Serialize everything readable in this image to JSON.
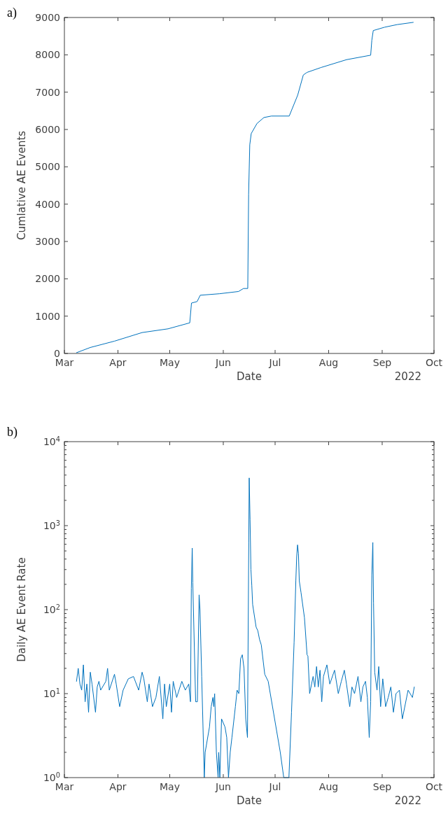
{
  "chart_data": [
    {
      "type": "line",
      "xlabel": "Date",
      "ylabel": "Cumlative AE Events",
      "annotations": [
        "a)",
        "2022"
      ],
      "x": [
        "2022-03-08",
        "2022-03-16",
        "2022-03-30",
        "2022-04-15",
        "2022-04-30",
        "2022-05-12T14:00",
        "2022-05-13T14:00",
        "2022-05-16T20:00",
        "2022-05-18T16:00",
        "2022-05-29T20:00",
        "2022-06-09T20:00",
        "2022-06-12T16:00",
        "2022-06-15T04:00",
        "2022-06-15T16:00",
        "2022-06-16T08:00",
        "2022-06-17T04:00",
        "2022-06-20T12:00",
        "2022-06-24T12:00",
        "2022-06-28T20:00",
        "2022-07-09T04:00",
        "2022-07-14T02:00",
        "2022-07-17T08:00",
        "2022-07-19T12:00",
        "2022-07-27T14:00",
        "2022-08-11T08:00",
        "2022-08-25T08:00",
        "2022-08-26",
        "2022-08-26T20:00",
        "2022-09-02T10:00",
        "2022-09-09T16:00",
        "2022-09-19"
      ],
      "series": [
        {
          "color": "#0072bd",
          "values": [
            20,
            160,
            330,
            560,
            660,
            820,
            1350,
            1390,
            1560,
            1600,
            1660,
            1740,
            1740,
            4270,
            5590,
            5890,
            6160,
            6320,
            6360,
            6360,
            6920,
            7460,
            7530,
            7660,
            7870,
            7990,
            8390,
            8650,
            8740,
            8810,
            8870
          ]
        }
      ],
      "xlim": [
        "2022-03-01",
        "2022-10-01"
      ],
      "xticks": [
        {
          "value": "2022-03-01",
          "label": "Mar"
        },
        {
          "value": "2022-04-01",
          "label": "Apr"
        },
        {
          "value": "2022-05-01",
          "label": "May"
        },
        {
          "value": "2022-06-01",
          "label": "Jun"
        },
        {
          "value": "2022-07-01",
          "label": "Jul"
        },
        {
          "value": "2022-08-01",
          "label": "Aug"
        },
        {
          "value": "2022-09-01",
          "label": "Sep"
        },
        {
          "value": "2022-10-01",
          "label": "Oct"
        }
      ],
      "ylim": [
        0,
        9000
      ],
      "yticks": [
        0,
        1000,
        2000,
        3000,
        4000,
        5000,
        6000,
        7000,
        8000,
        9000
      ]
    },
    {
      "type": "line",
      "xlabel": "Date",
      "ylabel": "Daily AE Event Rate",
      "annotations": [
        "b)",
        "2022"
      ],
      "log": "y",
      "x": [
        "2022-03-08",
        "2022-03-09",
        "2022-03-10",
        "2022-03-11",
        "2022-03-12",
        "2022-03-13",
        "2022-03-14",
        "2022-03-15",
        "2022-03-16",
        "2022-03-17",
        "2022-03-19",
        "2022-03-20",
        "2022-03-21",
        "2022-03-22",
        "2022-03-25",
        "2022-03-26",
        "2022-03-27",
        "2022-03-30",
        "2022-03-31",
        "2022-04-02",
        "2022-04-04",
        "2022-04-07",
        "2022-04-10",
        "2022-04-13",
        "2022-04-15",
        "2022-04-16",
        "2022-04-18",
        "2022-04-19",
        "2022-04-21",
        "2022-04-23",
        "2022-04-25",
        "2022-04-27",
        "2022-04-28",
        "2022-04-29",
        "2022-05-01",
        "2022-05-02",
        "2022-05-03",
        "2022-05-05",
        "2022-05-08",
        "2022-05-10",
        "2022-05-12",
        "2022-05-13",
        "2022-05-13T12:00",
        "2022-05-14",
        "2022-05-14T08:00",
        "2022-05-16",
        "2022-05-17",
        "2022-05-18",
        "2022-05-18T12:00",
        "2022-05-19T12:00",
        "2022-05-21",
        "2022-05-21T12:00",
        "2022-05-24",
        "2022-05-25",
        "2022-05-26",
        "2022-05-26T12:00",
        "2022-05-27",
        "2022-05-28",
        "2022-05-29",
        "2022-05-29T08:00",
        "2022-05-30",
        "2022-05-31",
        "2022-06-02",
        "2022-06-03",
        "2022-06-04",
        "2022-06-05",
        "2022-06-06",
        "2022-06-08",
        "2022-06-09",
        "2022-06-10",
        "2022-06-11",
        "2022-06-12",
        "2022-06-13",
        "2022-06-14",
        "2022-06-15",
        "2022-06-15T18:00",
        "2022-06-16",
        "2022-06-16T12:00",
        "2022-06-17",
        "2022-06-17T12:00",
        "2022-06-18",
        "2022-06-20",
        "2022-06-21",
        "2022-06-22",
        "2022-06-23",
        "2022-06-25",
        "2022-06-27",
        "2022-07-04",
        "2022-07-06",
        "2022-07-09",
        "2022-07-10T12:00",
        "2022-07-12",
        "2022-07-13",
        "2022-07-13T12:00",
        "2022-07-14",
        "2022-07-14T12:00",
        "2022-07-15",
        "2022-07-16",
        "2022-07-18",
        "2022-07-19T12:00",
        "2022-07-20",
        "2022-07-21",
        "2022-07-23",
        "2022-07-24",
        "2022-07-25",
        "2022-07-26",
        "2022-07-27",
        "2022-07-28",
        "2022-07-29",
        "2022-07-31",
        "2022-08-01T16:00",
        "2022-08-04T10:00",
        "2022-08-06T14:00",
        "2022-08-08T08:00",
        "2022-08-10T02:00",
        "2022-08-11T08:00",
        "2022-08-13T05:00",
        "2022-08-14T12:00",
        "2022-08-16",
        "2022-08-18",
        "2022-08-19T16:00",
        "2022-08-20T20:00",
        "2022-08-22T08:00",
        "2022-08-23T10:00",
        "2022-08-24T12:00",
        "2022-08-25T08:00",
        "2022-08-26",
        "2022-08-26T14:00",
        "2022-08-27",
        "2022-08-27T16:00",
        "2022-08-29",
        "2022-08-30",
        "2022-08-31T02:00",
        "2022-09-01T08:00",
        "2022-09-03",
        "2022-09-04T12:00",
        "2022-09-06",
        "2022-09-07T12:00",
        "2022-09-09",
        "2022-09-11",
        "2022-09-12T16:00",
        "2022-09-16",
        "2022-09-18T12:00",
        "2022-09-19T14:00"
      ],
      "series": [
        {
          "color": "#0072bd",
          "values": [
            14,
            20,
            13,
            11,
            22,
            8,
            13,
            6,
            18,
            13,
            6,
            12,
            14,
            11,
            14,
            20,
            11,
            17,
            13,
            7,
            11,
            15,
            16,
            11,
            18,
            15,
            8,
            13,
            7,
            9,
            16,
            5,
            13,
            7,
            13,
            6,
            14,
            9,
            14,
            11,
            13,
            8,
            180,
            540,
            210,
            8,
            8,
            150,
            100,
            16,
            1,
            2,
            4,
            7,
            9,
            7,
            10,
            2,
            1,
            2,
            1,
            5,
            4,
            3,
            1,
            2,
            3,
            7,
            11,
            10,
            26,
            29,
            20,
            5,
            3,
            620,
            3700,
            1170,
            300,
            195,
            115,
            62,
            56,
            44,
            38,
            17,
            14,
            2,
            1,
            1,
            6,
            41,
            220,
            430,
            590,
            470,
            220,
            160,
            80,
            29,
            28,
            10,
            16,
            12,
            21,
            12,
            19,
            8,
            16,
            22,
            13,
            19,
            10,
            14,
            19,
            13,
            7,
            12,
            10,
            16,
            8,
            12,
            14,
            9,
            3,
            8,
            260,
            630,
            120,
            18,
            11,
            21,
            7,
            15,
            7,
            9,
            12,
            6,
            10,
            11,
            5,
            11,
            9,
            12
          ]
        }
      ],
      "xlim": [
        "2022-03-01",
        "2022-10-01"
      ],
      "xticks": [
        {
          "value": "2022-03-01",
          "label": "Mar"
        },
        {
          "value": "2022-04-01",
          "label": "Apr"
        },
        {
          "value": "2022-05-01",
          "label": "May"
        },
        {
          "value": "2022-06-01",
          "label": "Jun"
        },
        {
          "value": "2022-07-01",
          "label": "Jul"
        },
        {
          "value": "2022-08-01",
          "label": "Aug"
        },
        {
          "value": "2022-09-01",
          "label": "Sep"
        },
        {
          "value": "2022-10-01",
          "label": "Oct"
        }
      ],
      "ylim": [
        1,
        10000
      ],
      "yticks": [
        {
          "value": 1,
          "label": "10$^{0}$"
        },
        {
          "value": 2,
          "label": null
        },
        {
          "value": 3,
          "label": null
        },
        {
          "value": 4,
          "label": null
        },
        {
          "value": 5,
          "label": null
        },
        {
          "value": 6,
          "label": null
        },
        {
          "value": 7,
          "label": null
        },
        {
          "value": 8,
          "label": null
        },
        {
          "value": 9,
          "label": null
        },
        {
          "value": 10,
          "label": "10$^{1}$"
        },
        {
          "value": 20,
          "label": null
        },
        {
          "value": 30,
          "label": null
        },
        {
          "value": 40,
          "label": null
        },
        {
          "value": 50,
          "label": null
        },
        {
          "value": 60,
          "label": null
        },
        {
          "value": 70,
          "label": null
        },
        {
          "value": 80,
          "label": null
        },
        {
          "value": 90,
          "label": null
        },
        {
          "value": 100,
          "label": "10$^{2}$"
        },
        {
          "value": 200,
          "label": null
        },
        {
          "value": 300,
          "label": null
        },
        {
          "value": 400,
          "label": null
        },
        {
          "value": 500,
          "label": null
        },
        {
          "value": 600,
          "label": null
        },
        {
          "value": 700,
          "label": null
        },
        {
          "value": 800,
          "label": null
        },
        {
          "value": 900,
          "label": null
        },
        {
          "value": 1000,
          "label": "10$^{3}$"
        },
        {
          "value": 2000,
          "label": null
        },
        {
          "value": 3000,
          "label": null
        },
        {
          "value": 4000,
          "label": null
        },
        {
          "value": 5000,
          "label": null
        },
        {
          "value": 6000,
          "label": null
        },
        {
          "value": 7000,
          "label": null
        },
        {
          "value": 8000,
          "label": null
        },
        {
          "value": 9000,
          "label": null
        },
        {
          "value": 10000,
          "label": "10$^{4}$"
        }
      ]
    }
  ]
}
